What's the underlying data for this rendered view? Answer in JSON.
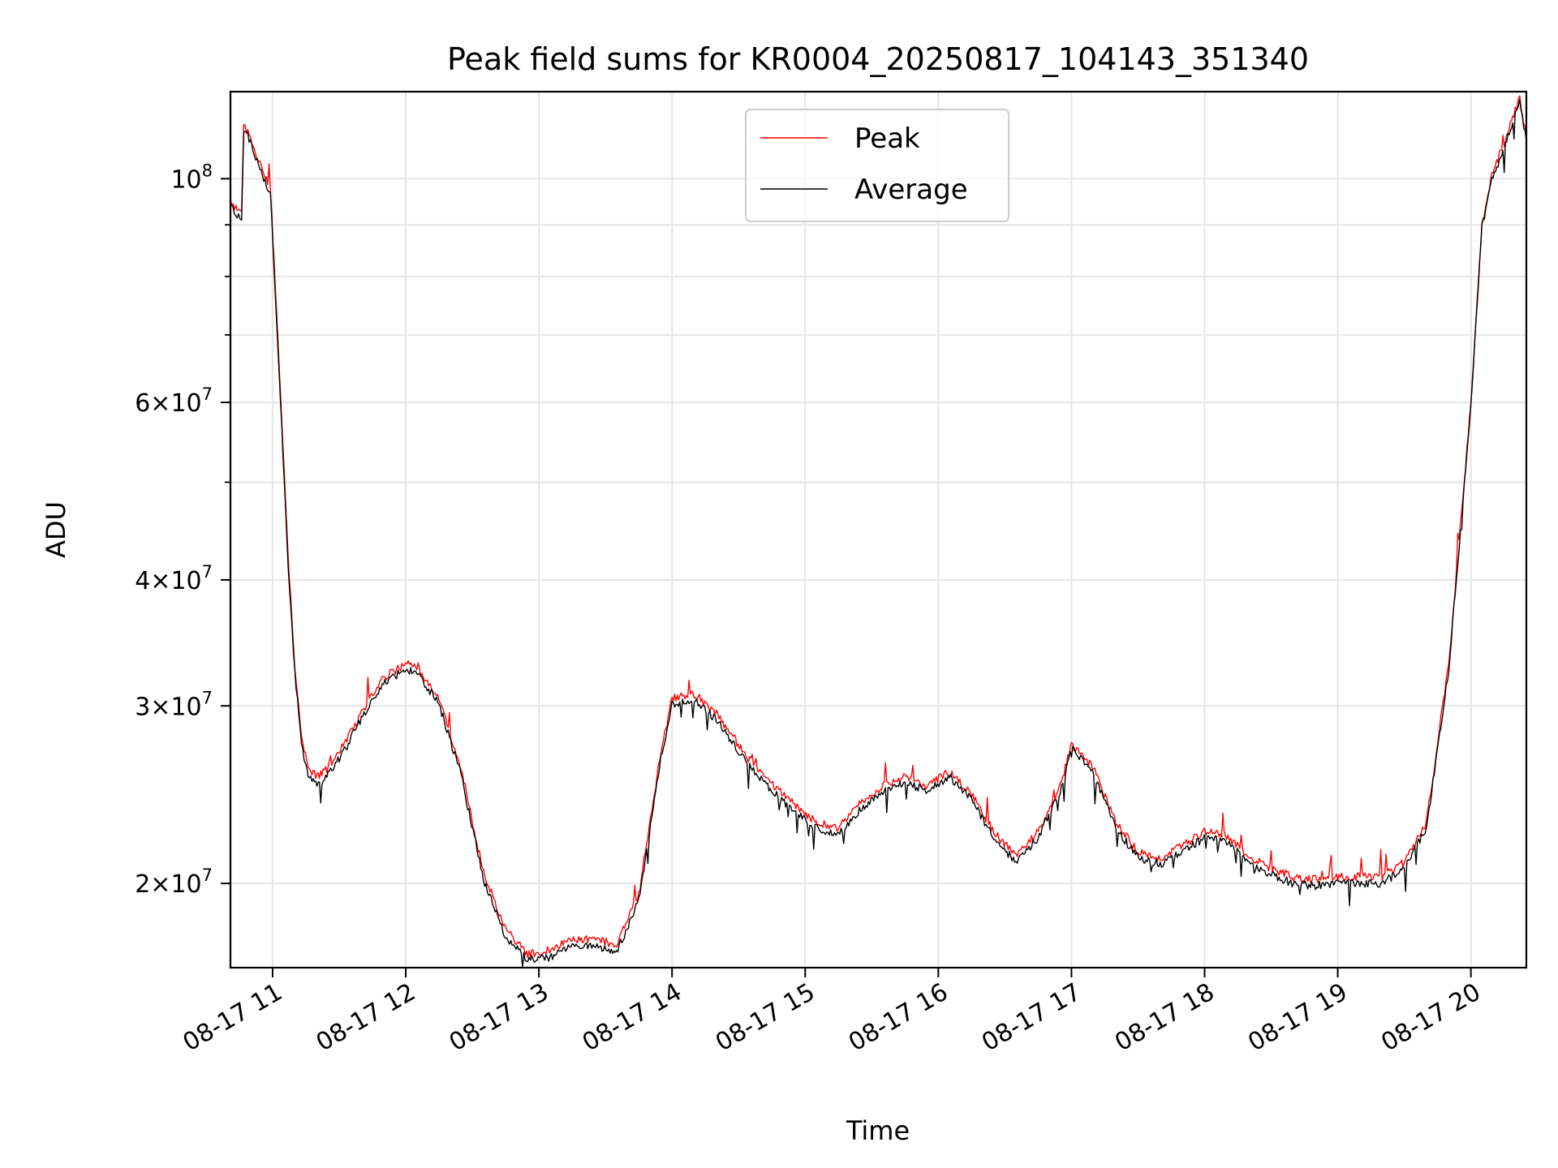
{
  "chart_data": {
    "type": "line",
    "title": "Peak field sums for KR0004_20250817_104143_351340",
    "xlabel": "Time",
    "ylabel": "ADU",
    "y_scale": "log",
    "grid": true,
    "legend_position": "upper-center",
    "xlim": [
      "2025-08-17 10:41",
      "2025-08-17 20:25"
    ],
    "ylim": [
      16500000,
      122000000
    ],
    "x_ticks": [
      "08-17 11",
      "08-17 12",
      "08-17 13",
      "08-17 14",
      "08-17 15",
      "08-17 16",
      "08-17 17",
      "08-17 18",
      "08-17 19",
      "08-17 20"
    ],
    "y_ticks": [
      {
        "value": 20000000,
        "mantissa": "2",
        "base": "10",
        "exp": "7"
      },
      {
        "value": 30000000,
        "mantissa": "3",
        "base": "10",
        "exp": "7"
      },
      {
        "value": 40000000,
        "mantissa": "4",
        "base": "10",
        "exp": "7"
      },
      {
        "value": 60000000,
        "mantissa": "6",
        "base": "10",
        "exp": "7"
      },
      {
        "value": 100000000,
        "mantissa": "",
        "base": "10",
        "exp": "8"
      }
    ],
    "x": [
      "2025-08-17 10:41",
      "2025-08-17 10:44",
      "2025-08-17 10:46",
      "2025-08-17 10:47",
      "2025-08-17 10:50",
      "2025-08-17 10:53",
      "2025-08-17 10:56",
      "2025-08-17 10:59",
      "2025-08-17 11:03",
      "2025-08-17 11:07",
      "2025-08-17 11:10",
      "2025-08-17 11:13",
      "2025-08-17 11:16",
      "2025-08-17 11:20",
      "2025-08-17 11:25",
      "2025-08-17 11:30",
      "2025-08-17 11:40",
      "2025-08-17 11:50",
      "2025-08-17 12:00",
      "2025-08-17 12:05",
      "2025-08-17 12:15",
      "2025-08-17 12:25",
      "2025-08-17 12:35",
      "2025-08-17 12:45",
      "2025-08-17 12:55",
      "2025-08-17 13:05",
      "2025-08-17 13:15",
      "2025-08-17 13:25",
      "2025-08-17 13:35",
      "2025-08-17 13:45",
      "2025-08-17 13:55",
      "2025-08-17 14:00",
      "2025-08-17 14:10",
      "2025-08-17 14:20",
      "2025-08-17 14:35",
      "2025-08-17 14:50",
      "2025-08-17 15:05",
      "2025-08-17 15:15",
      "2025-08-17 15:25",
      "2025-08-17 15:35",
      "2025-08-17 15:45",
      "2025-08-17 15:55",
      "2025-08-17 16:05",
      "2025-08-17 16:15",
      "2025-08-17 16:25",
      "2025-08-17 16:35",
      "2025-08-17 16:45",
      "2025-08-17 16:55",
      "2025-08-17 17:00",
      "2025-08-17 17:10",
      "2025-08-17 17:20",
      "2025-08-17 17:30",
      "2025-08-17 17:40",
      "2025-08-17 17:50",
      "2025-08-17 18:00",
      "2025-08-17 18:10",
      "2025-08-17 18:20",
      "2025-08-17 18:30",
      "2025-08-17 18:40",
      "2025-08-17 18:50",
      "2025-08-17 19:00",
      "2025-08-17 19:10",
      "2025-08-17 19:20",
      "2025-08-17 19:30",
      "2025-08-17 19:40",
      "2025-08-17 19:50",
      "2025-08-17 20:00",
      "2025-08-17 20:05",
      "2025-08-17 20:10",
      "2025-08-17 20:15",
      "2025-08-17 20:20",
      "2025-08-17 20:22",
      "2025-08-17 20:25"
    ],
    "series": [
      {
        "name": "Peak",
        "color": "#ff0000",
        "values": [
          95000000,
          93000000,
          92000000,
          113000000,
          110000000,
          105000000,
          101000000,
          98000000,
          65000000,
          42000000,
          33000000,
          28000000,
          26000000,
          25500000,
          26000000,
          27000000,
          29500000,
          32000000,
          33000000,
          32800000,
          30500000,
          26000000,
          20500000,
          18000000,
          17000000,
          17200000,
          17600000,
          17600000,
          17400000,
          19500000,
          27000000,
          30500000,
          30800000,
          29500000,
          26500000,
          24500000,
          23000000,
          22700000,
          24000000,
          25000000,
          25500000,
          25000000,
          25800000,
          24500000,
          22500000,
          21300000,
          22500000,
          25000000,
          27500000,
          26000000,
          23000000,
          21500000,
          21200000,
          21800000,
          22500000,
          22300000,
          21300000,
          20700000,
          20300000,
          20200000,
          20300000,
          20300000,
          20300000,
          21000000,
          23000000,
          33000000,
          60000000,
          90000000,
          102000000,
          108000000,
          117000000,
          120000000,
          110000000
        ]
      },
      {
        "name": "Average",
        "color": "#000000",
        "values": [
          94000000,
          92000000,
          91000000,
          112000000,
          109000000,
          104000000,
          100000000,
          97000000,
          64000000,
          41500000,
          32500000,
          27500000,
          25500000,
          25000000,
          25600000,
          26600000,
          29100000,
          31600000,
          32600000,
          32400000,
          30100000,
          25600000,
          20200000,
          17700000,
          16800000,
          16900000,
          17300000,
          17300000,
          17100000,
          19200000,
          26600000,
          30100000,
          30400000,
          29100000,
          26100000,
          24100000,
          22700000,
          22400000,
          23700000,
          24700000,
          25200000,
          24700000,
          25500000,
          24200000,
          22200000,
          21000000,
          22200000,
          24700000,
          27200000,
          25700000,
          22700000,
          21200000,
          20900000,
          21500000,
          22200000,
          22000000,
          21000000,
          20400000,
          20000000,
          19900000,
          20000000,
          20000000,
          20000000,
          20700000,
          22700000,
          32600000,
          59500000,
          89500000,
          101000000,
          107000000,
          116000000,
          119000000,
          109000000
        ]
      }
    ]
  }
}
